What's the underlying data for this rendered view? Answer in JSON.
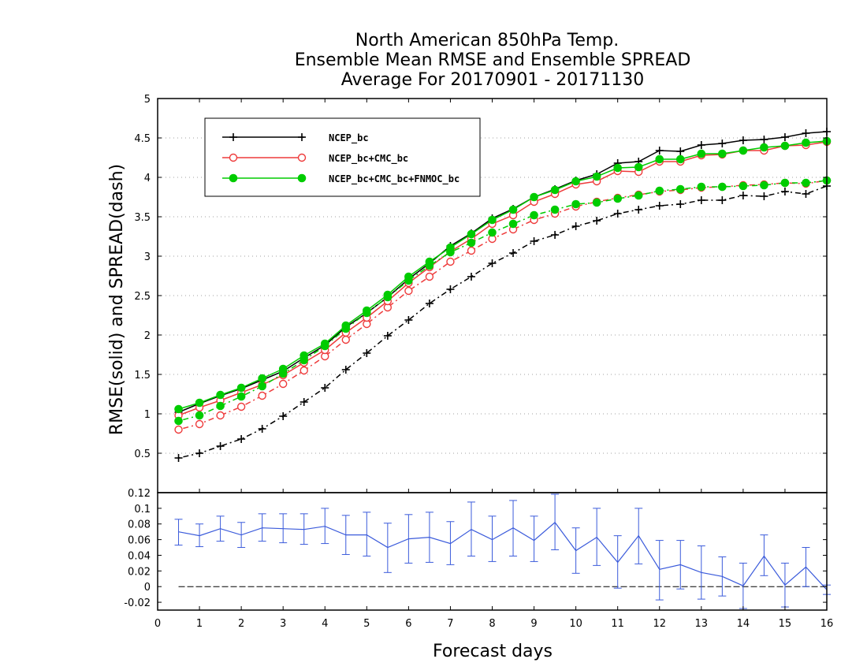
{
  "chart_data": [
    {
      "type": "line",
      "title_lines": [
        "North American 850hPa Temp.",
        "Ensemble Mean RMSE and Ensemble SPREAD",
        "Average For 20170901 - 20171130"
      ],
      "ylabel": "RMSE(solid)  and  SPREAD(dash)",
      "ylim": [
        0,
        5
      ],
      "yticks": [
        "0.5",
        "1",
        "1.5",
        "2",
        "2.5",
        "3",
        "3.5",
        "4",
        "4.5",
        "5"
      ],
      "grid": true,
      "legend_position": "top-left",
      "x": [
        0.5,
        1,
        1.5,
        2,
        2.5,
        3,
        3.5,
        4,
        4.5,
        5,
        5.5,
        6,
        6.5,
        7,
        7.5,
        8,
        8.5,
        9,
        9.5,
        10,
        10.5,
        11,
        11.5,
        12,
        12.5,
        13,
        13.5,
        14,
        14.5,
        15,
        15.5,
        16
      ],
      "series": [
        {
          "name": "NCEP_bc",
          "color": "#000000",
          "marker": "plus",
          "rmse": [
            1.02,
            1.13,
            1.23,
            1.32,
            1.43,
            1.54,
            1.71,
            1.87,
            2.1,
            2.28,
            2.48,
            2.71,
            2.91,
            3.13,
            3.29,
            3.48,
            3.6,
            3.75,
            3.85,
            3.96,
            4.04,
            4.18,
            4.2,
            4.34,
            4.33,
            4.41,
            4.43,
            4.47,
            4.48,
            4.51,
            4.56,
            4.58
          ],
          "spread": [
            0.44,
            0.5,
            0.59,
            0.68,
            0.81,
            0.97,
            1.15,
            1.33,
            1.56,
            1.77,
            1.99,
            2.19,
            2.4,
            2.58,
            2.74,
            2.91,
            3.04,
            3.19,
            3.27,
            3.38,
            3.45,
            3.54,
            3.59,
            3.64,
            3.66,
            3.71,
            3.71,
            3.77,
            3.76,
            3.82,
            3.79,
            3.89
          ]
        },
        {
          "name": "NCEP_bc+CMC_bc",
          "color": "#ee3b3b",
          "marker": "open-circle",
          "rmse": [
            0.98,
            1.08,
            1.17,
            1.27,
            1.37,
            1.49,
            1.65,
            1.81,
            2.03,
            2.22,
            2.43,
            2.66,
            2.86,
            3.06,
            3.22,
            3.41,
            3.52,
            3.69,
            3.79,
            3.91,
            3.95,
            4.08,
            4.07,
            4.2,
            4.2,
            4.28,
            4.29,
            4.34,
            4.34,
            4.4,
            4.41,
            4.45
          ],
          "spread": [
            0.8,
            0.87,
            0.98,
            1.09,
            1.23,
            1.38,
            1.55,
            1.73,
            1.94,
            2.14,
            2.35,
            2.56,
            2.74,
            2.93,
            3.07,
            3.22,
            3.34,
            3.46,
            3.54,
            3.63,
            3.69,
            3.74,
            3.78,
            3.82,
            3.84,
            3.87,
            3.88,
            3.9,
            3.91,
            3.93,
            3.92,
            3.96
          ]
        },
        {
          "name": "NCEP_bc+CMC_bc+FNMOC_bc",
          "color": "#00cc00",
          "marker": "filled-circle",
          "rmse": [
            1.06,
            1.14,
            1.24,
            1.33,
            1.45,
            1.57,
            1.74,
            1.89,
            2.12,
            2.31,
            2.51,
            2.74,
            2.93,
            3.11,
            3.28,
            3.46,
            3.59,
            3.75,
            3.84,
            3.95,
            4.01,
            4.12,
            4.13,
            4.23,
            4.23,
            4.3,
            4.3,
            4.34,
            4.38,
            4.4,
            4.44,
            4.46
          ],
          "spread": [
            0.91,
            0.98,
            1.1,
            1.22,
            1.35,
            1.51,
            1.68,
            1.86,
            2.08,
            2.28,
            2.48,
            2.69,
            2.88,
            3.05,
            3.17,
            3.3,
            3.41,
            3.52,
            3.59,
            3.66,
            3.68,
            3.73,
            3.77,
            3.83,
            3.85,
            3.88,
            3.88,
            3.89,
            3.9,
            3.93,
            3.93,
            3.96
          ]
        }
      ]
    },
    {
      "type": "line",
      "xlabel": "Forecast days",
      "xlim": [
        0,
        16
      ],
      "xticks": [
        "0",
        "1",
        "2",
        "3",
        "4",
        "5",
        "6",
        "7",
        "8",
        "9",
        "10",
        "11",
        "12",
        "13",
        "14",
        "15",
        "16"
      ],
      "ylim": [
        -0.03,
        0.12
      ],
      "yticks": [
        "-0.02",
        "0",
        "0.02",
        "0.04",
        "0.06",
        "0.08",
        "0.1",
        "0.12"
      ],
      "zero_line": true,
      "series": [
        {
          "color": "#3b5bdb",
          "x": [
            0.5,
            1,
            1.5,
            2,
            2.5,
            3,
            3.5,
            4,
            4.5,
            5,
            5.5,
            6,
            6.5,
            7,
            7.5,
            8,
            8.5,
            9,
            9.5,
            10,
            10.5,
            11,
            11.5,
            12,
            12.5,
            13,
            13.5,
            14,
            14.5,
            15,
            15.5,
            16
          ],
          "y": [
            0.07,
            0.065,
            0.074,
            0.066,
            0.075,
            0.074,
            0.073,
            0.077,
            0.066,
            0.066,
            0.05,
            0.061,
            0.063,
            0.055,
            0.073,
            0.06,
            0.075,
            0.059,
            0.082,
            0.046,
            0.063,
            0.031,
            0.065,
            0.022,
            0.028,
            0.018,
            0.013,
            0.001,
            0.039,
            0.002,
            0.025,
            -0.004
          ],
          "err_low": [
            0.053,
            0.051,
            0.058,
            0.05,
            0.058,
            0.056,
            0.054,
            0.055,
            0.041,
            0.039,
            0.018,
            0.03,
            0.031,
            0.028,
            0.039,
            0.032,
            0.039,
            0.032,
            0.047,
            0.017,
            0.027,
            -0.002,
            0.029,
            -0.017,
            -0.003,
            -0.016,
            -0.012,
            -0.028,
            0.014,
            -0.026,
            0.0,
            -0.01
          ],
          "err_high": [
            0.086,
            0.08,
            0.09,
            0.082,
            0.093,
            0.093,
            0.093,
            0.1,
            0.091,
            0.095,
            0.081,
            0.092,
            0.095,
            0.083,
            0.108,
            0.09,
            0.11,
            0.09,
            0.118,
            0.075,
            0.1,
            0.065,
            0.1,
            0.059,
            0.059,
            0.052,
            0.038,
            0.03,
            0.066,
            0.03,
            0.05,
            0.002
          ]
        }
      ]
    }
  ]
}
